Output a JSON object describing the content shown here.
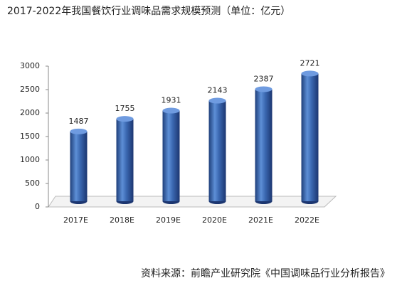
{
  "chart_data": {
    "type": "bar",
    "title": "2017-2022年我国餐饮行业调味品需求规模预测（单位：亿元）",
    "source": "资料来源：前瞻产业研究院《中国调味品行业分析报告》",
    "categories": [
      "2017E",
      "2018E",
      "2019E",
      "2020E",
      "2021E",
      "2022E"
    ],
    "values": [
      1487,
      1755,
      1931,
      2143,
      2387,
      2721
    ],
    "color": "#3a67b0",
    "ylim": [
      0,
      3000
    ],
    "yticks": [
      0,
      500,
      1000,
      1500,
      2000,
      2500,
      3000
    ]
  }
}
